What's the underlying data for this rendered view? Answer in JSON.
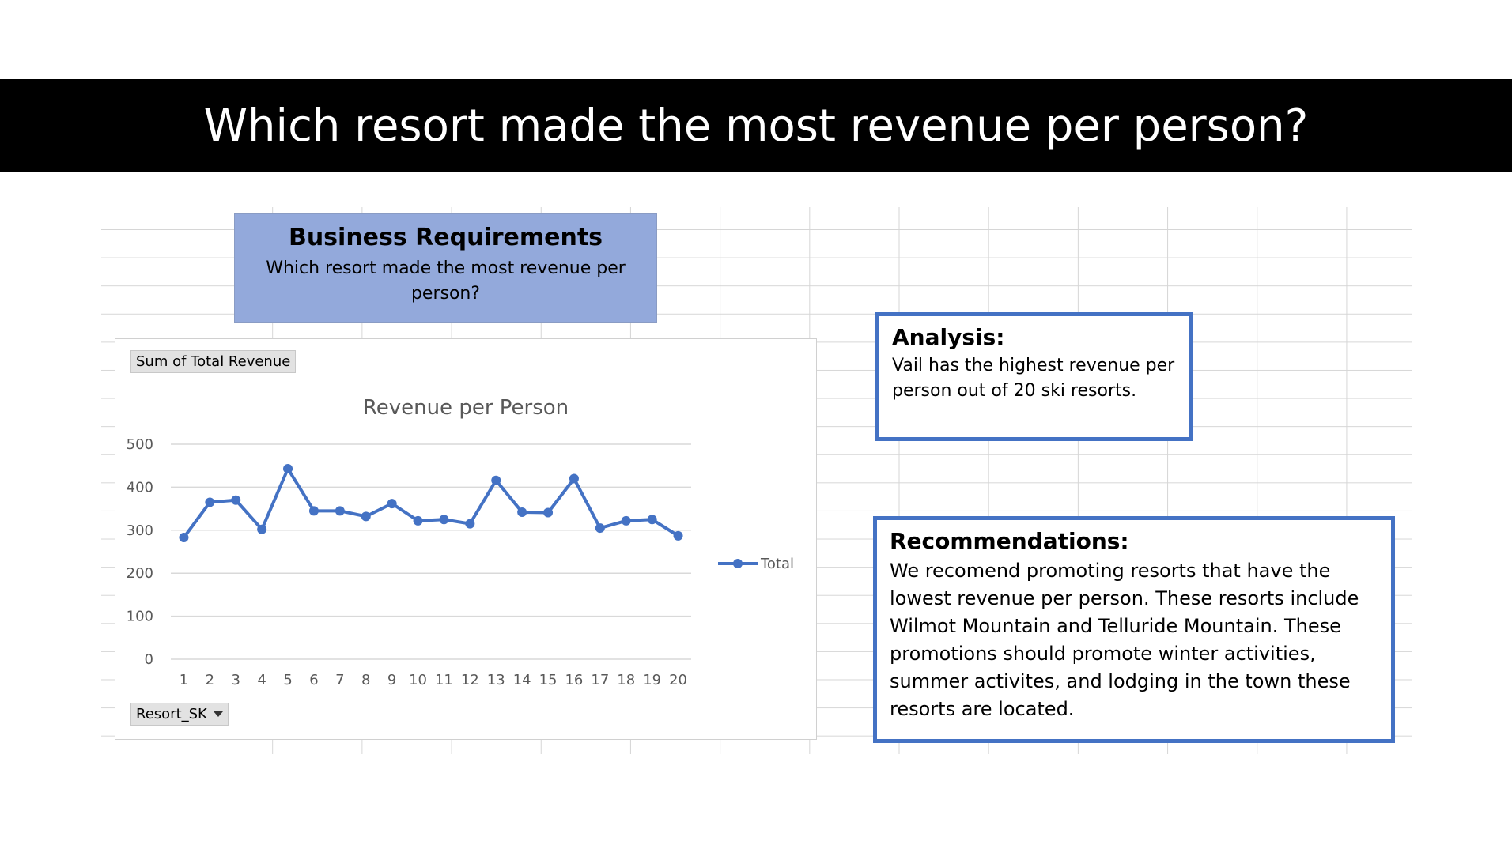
{
  "slide": {
    "title": "Which resort made the most revenue per person?"
  },
  "business_requirements": {
    "heading": "Business Requirements",
    "text": "Which resort made the most revenue per person?"
  },
  "pivot": {
    "values_field": "Sum of Total Revenue",
    "axis_field": "Resort_SK"
  },
  "analysis": {
    "heading": "Analysis:",
    "text": "Vail has the highest revenue per person out of 20 ski resorts."
  },
  "recommendations": {
    "heading": "Recommendations:",
    "text": "We recomend promoting resorts that have the lowest revenue per person. These resorts include Wilmot Mountain and Telluride Mountain. These promotions should promote winter activities, summer activites, and lodging in the town these resorts are located."
  },
  "colors": {
    "series": "#4472c4",
    "panel": "#93a9db",
    "title_bar": "#000000"
  },
  "chart_data": {
    "type": "line",
    "title": "Revenue per Person",
    "categories": [
      "1",
      "2",
      "3",
      "4",
      "5",
      "6",
      "7",
      "8",
      "9",
      "10",
      "11",
      "12",
      "13",
      "14",
      "15",
      "16",
      "17",
      "18",
      "19",
      "20"
    ],
    "series": [
      {
        "name": "Total",
        "values": [
          283,
          365,
          370,
          302,
          443,
          345,
          345,
          332,
          362,
          322,
          325,
          315,
          416,
          342,
          341,
          420,
          305,
          322,
          325,
          287
        ]
      }
    ],
    "ylim": [
      0,
      500
    ],
    "yticks": [
      0,
      100,
      200,
      300,
      400,
      500
    ],
    "grid": true,
    "legend": "right"
  }
}
